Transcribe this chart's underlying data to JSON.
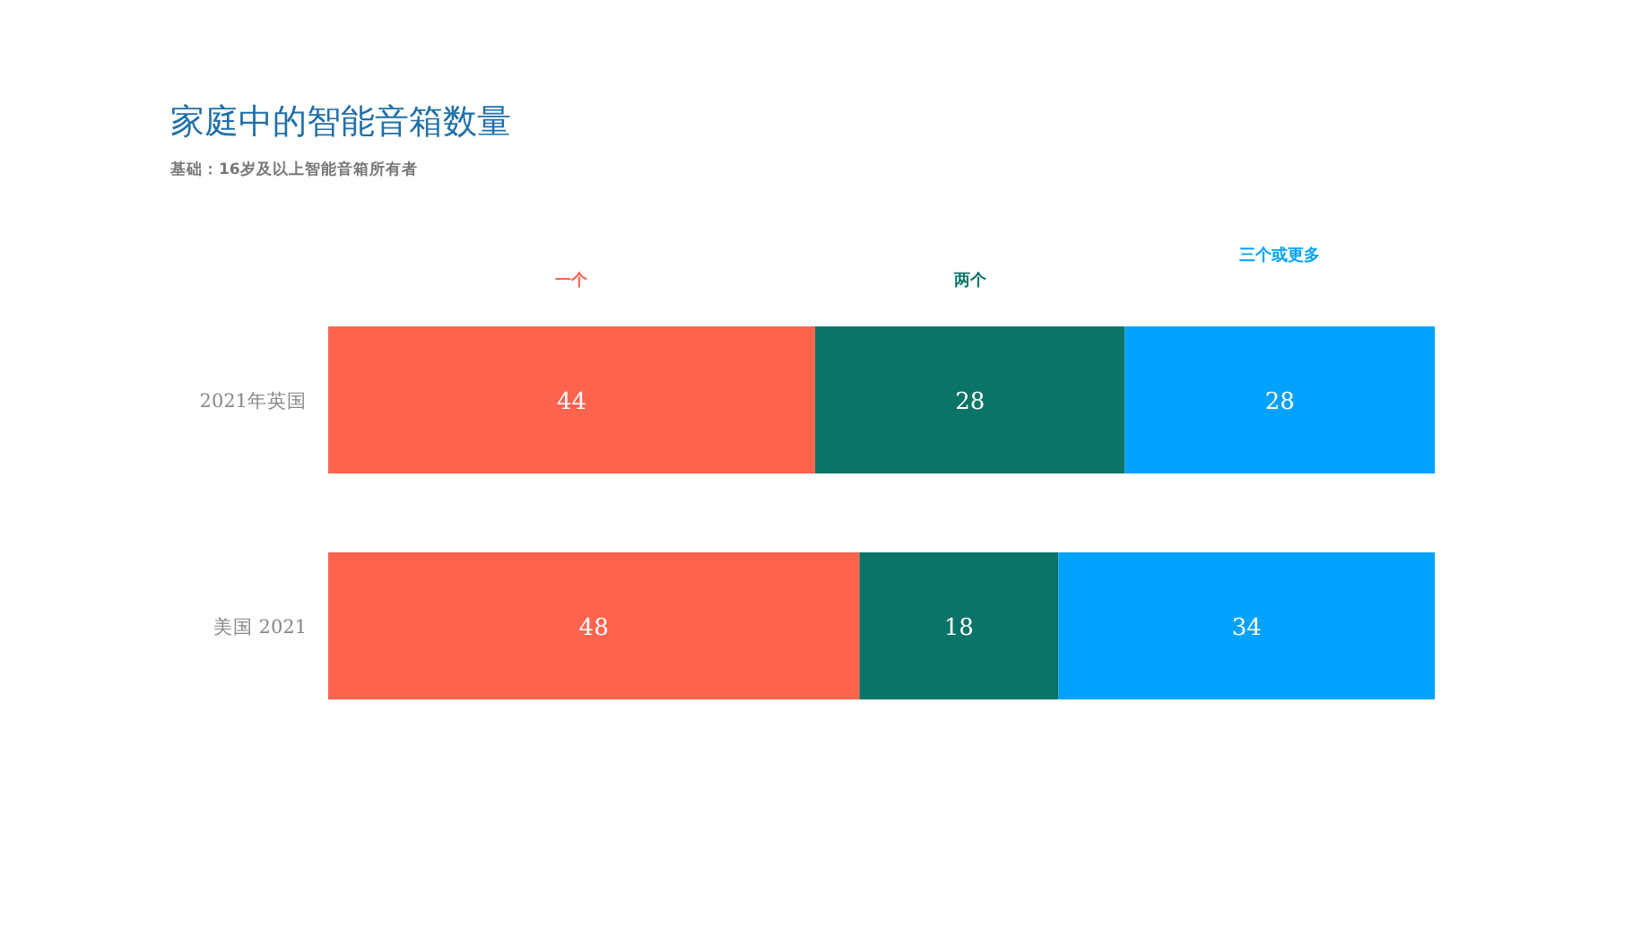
{
  "chart_data": {
    "type": "bar",
    "orientation": "horizontal",
    "stacked": true,
    "title": "家庭中的智能音箱数量",
    "subtitle": "基础：16岁及以上智能音箱所有者",
    "categories": [
      "2021年英国",
      "美国 2021"
    ],
    "series": [
      {
        "name": "一个",
        "color": "#fe634e",
        "values": [
          44,
          48
        ]
      },
      {
        "name": "两个",
        "color": "#0b7468",
        "values": [
          28,
          18
        ]
      },
      {
        "name": "三个或更多",
        "color": "#00a2fe",
        "values": [
          28,
          34
        ]
      }
    ],
    "xlim": [
      0,
      100
    ],
    "tick_labels": "y",
    "data_labels": true,
    "legend": "top"
  }
}
